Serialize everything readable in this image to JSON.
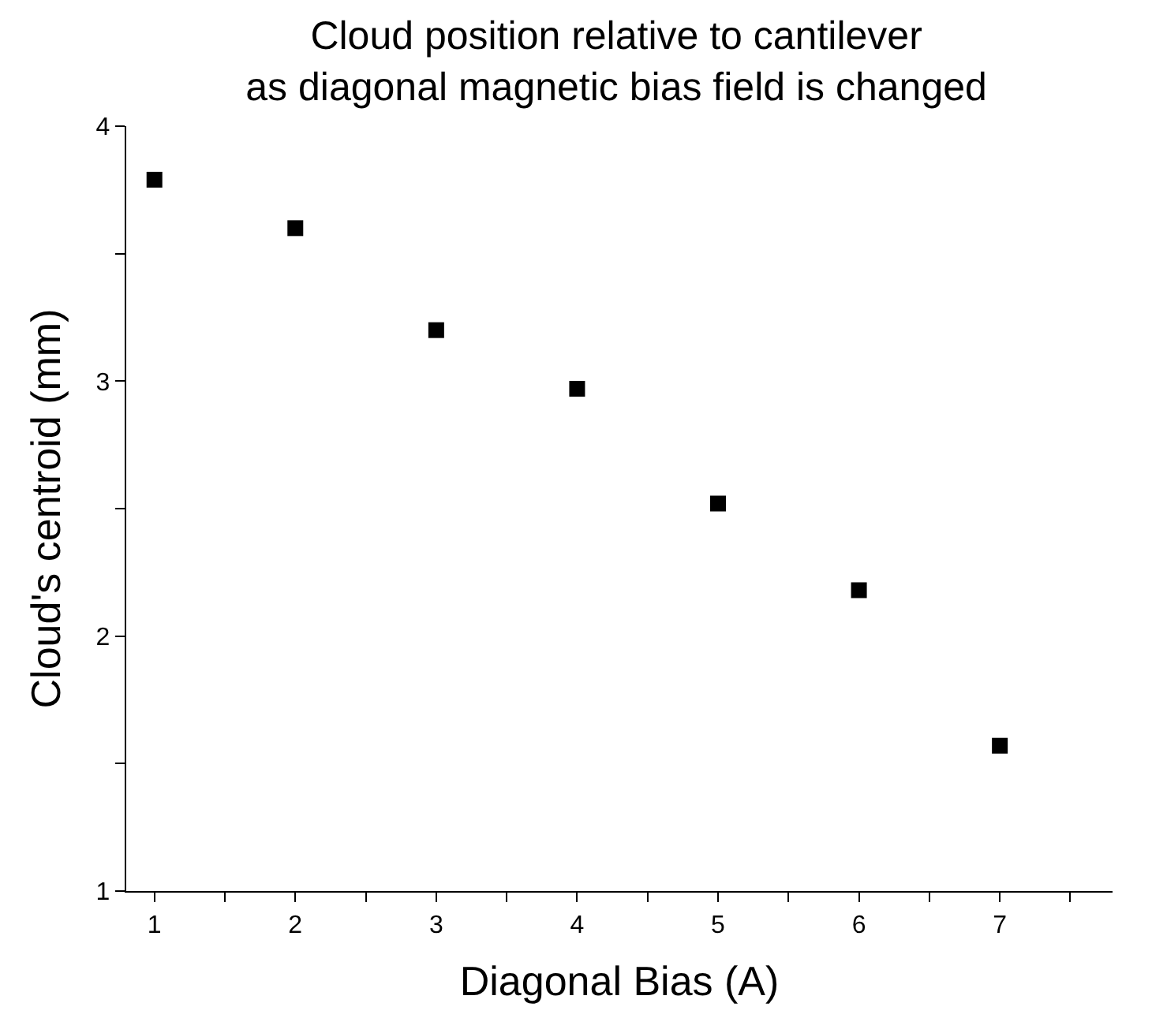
{
  "chart_data": {
    "type": "scatter",
    "title": "Cloud position relative to cantilever\nas diagonal magnetic bias field is changed",
    "xlabel": "Diagonal Bias (A)",
    "ylabel": "Cloud's centroid (mm)",
    "x": [
      1,
      2,
      3,
      4,
      5,
      6,
      7
    ],
    "values": [
      3.79,
      3.6,
      3.2,
      2.97,
      2.52,
      2.18,
      1.57
    ],
    "color": "#000000",
    "marker": "square",
    "xlim": [
      0.8,
      7.8
    ],
    "xticks": [
      1,
      {
        "value": 1.5,
        "label": null
      },
      2,
      {
        "value": 2.5,
        "label": null
      },
      3,
      {
        "value": 3.5,
        "label": null
      },
      4,
      {
        "value": 4.5,
        "label": null
      },
      5,
      {
        "value": 5.5,
        "label": null
      },
      6,
      {
        "value": 6.5,
        "label": null
      },
      7,
      {
        "value": 7.5,
        "label": null
      }
    ],
    "ylim": [
      1,
      4
    ],
    "yticks": [
      1,
      {
        "value": 1.5,
        "label": null
      },
      2,
      {
        "value": 2.5,
        "label": null
      },
      3,
      {
        "value": 3.5,
        "label": null
      },
      4
    ],
    "grid": false
  }
}
